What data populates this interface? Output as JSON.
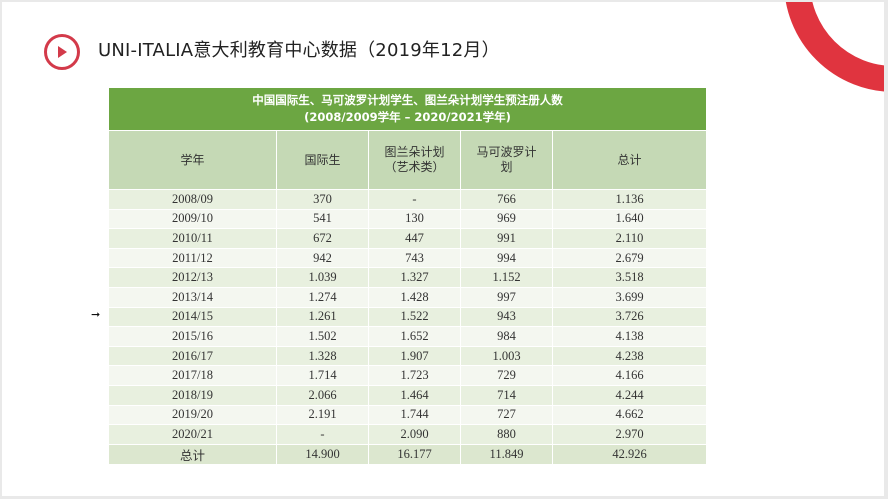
{
  "header": {
    "title": "UNI-ITALIA意大利教育中心数据（2019年12月）",
    "logo_icon": "play-circle-icon",
    "accent": "#e0343f"
  },
  "cursor": "➞",
  "table": {
    "caption_line1": "中国国际生、马可波罗计划学生、图兰朵计划学生预注册人数",
    "caption_line2": "(2008/2009学年 – 2020/2021学年)",
    "columns": [
      "学年",
      "国际生",
      "图兰朵计划\n（艺术类）",
      "马可波罗计\n划",
      "总计"
    ],
    "rows": [
      [
        "2008/09",
        "370",
        "-",
        "766",
        "1.136"
      ],
      [
        "2009/10",
        "541",
        "130",
        "969",
        "1.640"
      ],
      [
        "2010/11",
        "672",
        "447",
        "991",
        "2.110"
      ],
      [
        "2011/12",
        "942",
        "743",
        "994",
        "2.679"
      ],
      [
        "2012/13",
        "1.039",
        "1.327",
        "1.152",
        "3.518"
      ],
      [
        "2013/14",
        "1.274",
        "1.428",
        "997",
        "3.699"
      ],
      [
        "2014/15",
        "1.261",
        "1.522",
        "943",
        "3.726"
      ],
      [
        "2015/16",
        "1.502",
        "1.652",
        "984",
        "4.138"
      ],
      [
        "2016/17",
        "1.328",
        "1.907",
        "1.003",
        "4.238"
      ],
      [
        "2017/18",
        "1.714",
        "1.723",
        "729",
        "4.166"
      ],
      [
        "2018/19",
        "2.066",
        "1.464",
        "714",
        "4.244"
      ],
      [
        "2019/20",
        "2.191",
        "1.744",
        "727",
        "4.662"
      ],
      [
        "2020/21",
        "-",
        "2.090",
        "880",
        "2.970"
      ],
      [
        "总计",
        "14.900",
        "16.177",
        "11.849",
        "42.926"
      ]
    ],
    "colors": {
      "caption_bg": "#6ca642",
      "header_bg": "#c5d9b5",
      "row_bg": "#e8f0df"
    }
  }
}
